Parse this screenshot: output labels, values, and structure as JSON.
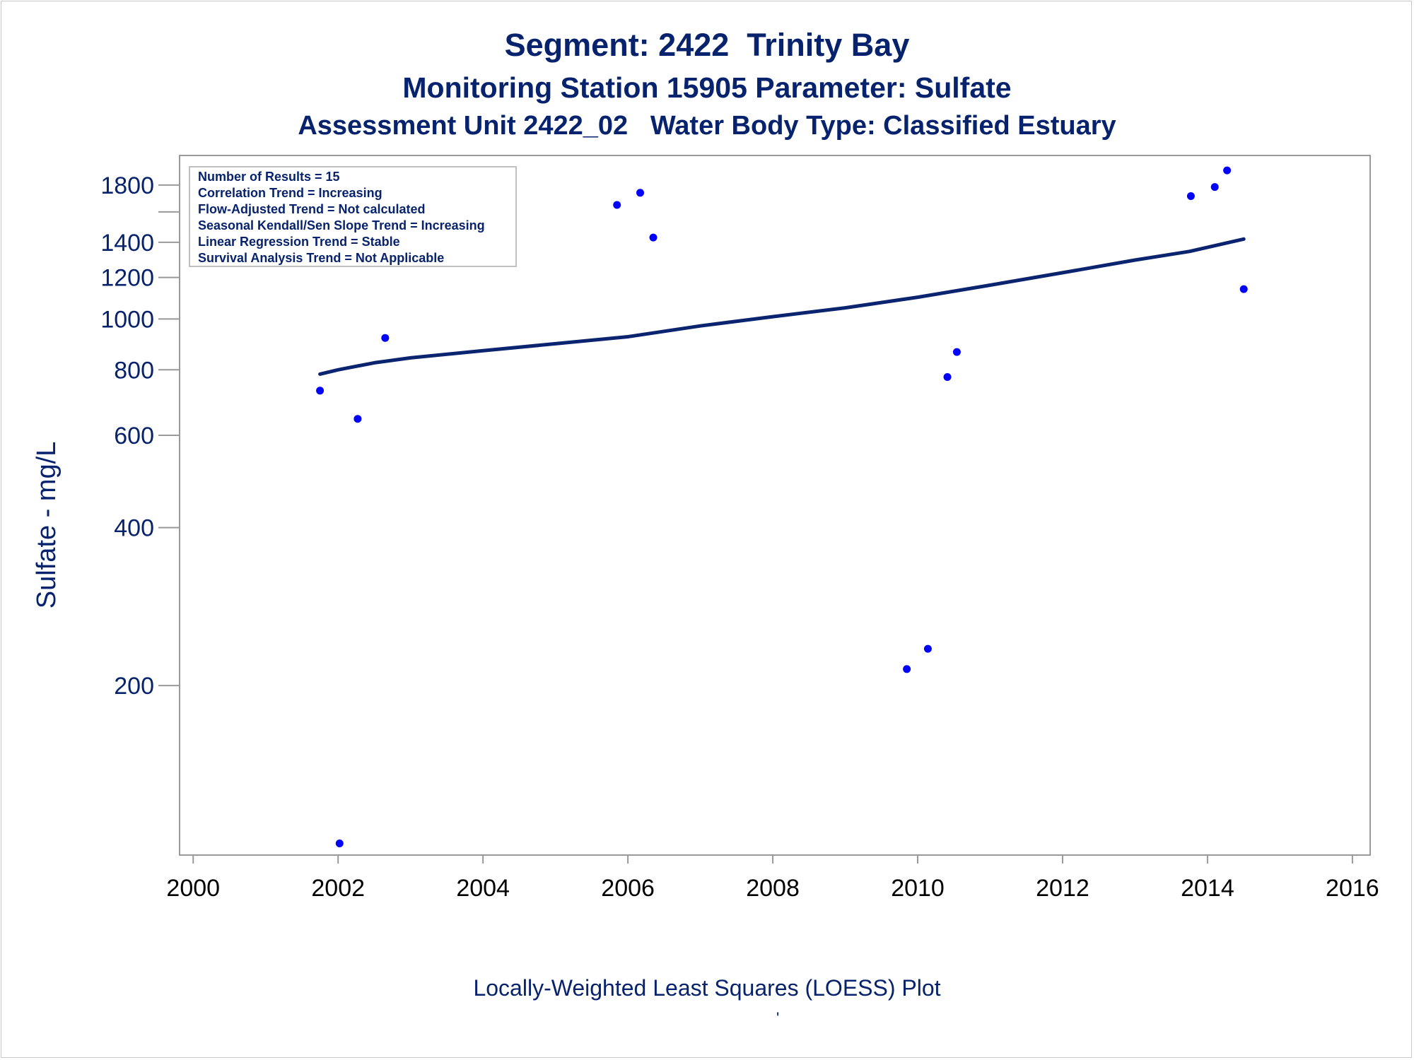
{
  "titles": {
    "line1": "Segment: 2422  Trinity Bay",
    "line2": "Monitoring Station 15905 Parameter: Sulfate",
    "line3": "Assessment Unit 2422_02   Water Body Type: Classified Estuary"
  },
  "footnote": "Locally-Weighted Least Squares (LOESS) Plot",
  "footnote_mark": "'",
  "stats_box": [
    "Number of Results = 15",
    "Correlation Trend = Increasing",
    "Flow-Adjusted Trend = Not calculated",
    "Seasonal Kendall/Sen Slope Trend = Increasing",
    "Linear Regression Trend = Stable",
    "Survival Analysis Trend = Not Applicable"
  ],
  "colors": {
    "text": "#08236e",
    "points": "#0000ff",
    "loess_line": "#0a2470",
    "axis": "#999999"
  },
  "chart_data": {
    "type": "scatter",
    "ylabel": "Sulfate - mg/L",
    "xlabel": "",
    "y_scale": "log",
    "xlim": [
      1999.9,
      2016.05
    ],
    "ylim": [
      95,
      2050
    ],
    "x_ticks": [
      2000,
      2002,
      2004,
      2006,
      2008,
      2010,
      2012,
      2014,
      2016
    ],
    "y_ticks": [
      200,
      400,
      600,
      800,
      1000,
      1200,
      1400,
      1800
    ],
    "y_minor_ticks": [
      1600
    ],
    "grid": false,
    "series": [
      {
        "kind": "points",
        "points": [
          {
            "x": 2001.75,
            "y": 730
          },
          {
            "x": 2002.02,
            "y": 100
          },
          {
            "x": 2002.27,
            "y": 645
          },
          {
            "x": 2002.65,
            "y": 920
          },
          {
            "x": 2005.85,
            "y": 1650
          },
          {
            "x": 2006.17,
            "y": 1740
          },
          {
            "x": 2006.35,
            "y": 1430
          },
          {
            "x": 2009.85,
            "y": 215
          },
          {
            "x": 2010.14,
            "y": 235
          },
          {
            "x": 2010.41,
            "y": 775
          },
          {
            "x": 2010.54,
            "y": 865
          },
          {
            "x": 2013.77,
            "y": 1715
          },
          {
            "x": 2014.1,
            "y": 1785
          },
          {
            "x": 2014.27,
            "y": 1920
          },
          {
            "x": 2014.5,
            "y": 1140
          }
        ]
      },
      {
        "kind": "loess",
        "points": [
          {
            "x": 2001.75,
            "y": 785
          },
          {
            "x": 2002.0,
            "y": 800
          },
          {
            "x": 2002.5,
            "y": 825
          },
          {
            "x": 2003.0,
            "y": 843
          },
          {
            "x": 2004.0,
            "y": 870
          },
          {
            "x": 2005.0,
            "y": 897
          },
          {
            "x": 2006.0,
            "y": 925
          },
          {
            "x": 2007.0,
            "y": 970
          },
          {
            "x": 2008.0,
            "y": 1010
          },
          {
            "x": 2009.0,
            "y": 1050
          },
          {
            "x": 2010.0,
            "y": 1100
          },
          {
            "x": 2011.0,
            "y": 1160
          },
          {
            "x": 2012.0,
            "y": 1225
          },
          {
            "x": 2013.0,
            "y": 1295
          },
          {
            "x": 2013.75,
            "y": 1345
          },
          {
            "x": 2014.5,
            "y": 1420
          }
        ]
      }
    ]
  }
}
